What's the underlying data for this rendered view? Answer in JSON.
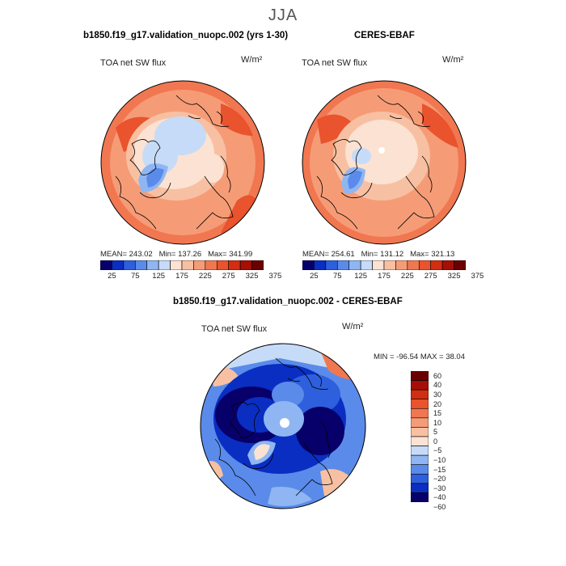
{
  "season": "JJA",
  "left_panel": {
    "title": "b1850.f19_g17.validation_nuopc.002 (yrs 1-30)",
    "label": "TOA net SW flux",
    "units": "W/m²",
    "stats": {
      "mean_label": "MEAN=",
      "mean": "243.02",
      "min_label": "Min=",
      "min": "137.26",
      "max_label": "Max=",
      "max": "341.99"
    }
  },
  "right_panel": {
    "title": "CERES-EBAF",
    "label": "TOA net SW flux",
    "units": "W/m²",
    "stats": {
      "mean_label": "MEAN=",
      "mean": "254.61",
      "min_label": "Min=",
      "min": "131.12",
      "max_label": "Max=",
      "max": "321.13"
    }
  },
  "diff_panel": {
    "title": "b1850.f19_g17.validation_nuopc.002 - CERES-EBAF",
    "label": "TOA net SW flux",
    "units": "W/m²",
    "minmax_text": "MIN = -96.54 MAX =  38.04"
  },
  "colorbar_abs": {
    "colors": [
      "#08006a",
      "#0a2ec2",
      "#2e5fdc",
      "#5a8bea",
      "#8fb6f2",
      "#c6dbf7",
      "#fbe2d2",
      "#f8c0a2",
      "#f59c77",
      "#f17751",
      "#e9532d",
      "#d12e12",
      "#a60f06",
      "#6b0000"
    ],
    "ticks": [
      "25",
      "75",
      "125",
      "175",
      "225",
      "275",
      "325",
      "375"
    ]
  },
  "colorbar_diff": {
    "colors": [
      "#6b0000",
      "#a60f06",
      "#d12e12",
      "#e9532d",
      "#f17751",
      "#f59c77",
      "#f8c0a2",
      "#fbe2d2",
      "#c6dbf7",
      "#8fb6f2",
      "#5a8bea",
      "#2e5fdc",
      "#0a2ec2",
      "#08006a"
    ],
    "ticks": [
      "60",
      "40",
      "30",
      "20",
      "15",
      "10",
      "5",
      "0",
      "−5",
      "−10",
      "−15",
      "−20",
      "−30",
      "−40",
      "−60"
    ]
  }
}
